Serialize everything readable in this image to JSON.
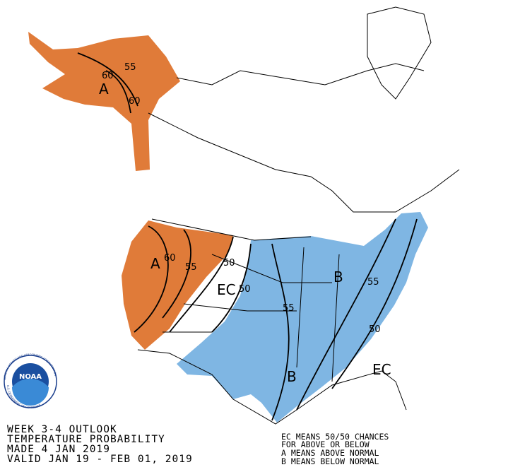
{
  "title_lines": [
    "WEEK 3-4 OUTLOOK",
    "TEMPERATURE PROBABILITY",
    "MADE  4 JAN 2019",
    "VALID  JAN 19 - FEB 01, 2019"
  ],
  "legend_lines": [
    "EC MEANS 50/50 CHANCES",
    "FOR ABOVE OR BELOW",
    "A MEANS ABOVE NORMAL",
    "B MEANS BELOW NORMAL"
  ],
  "logo": {
    "name": "NOAA",
    "ring_top": "NATIONAL OCEANIC AND ATMOSPHERIC ADMINISTRATION",
    "ring_bottom": "U.S. DEPARTMENT OF COMMERCE"
  },
  "map_labels": {
    "alaska": [
      "55",
      "60",
      "A",
      "60"
    ],
    "west": [
      "A",
      "60",
      "55",
      "50",
      "EC",
      "50"
    ],
    "east": [
      "B",
      "55",
      "55",
      "B",
      "50",
      "EC"
    ]
  }
}
